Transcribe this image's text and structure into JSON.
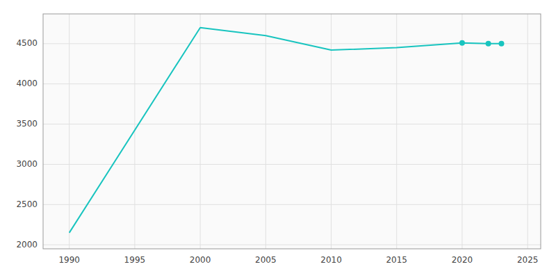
{
  "chart_data": {
    "type": "line",
    "x": [
      1990,
      2000,
      2005,
      2010,
      2015,
      2020,
      2022,
      2023
    ],
    "series": [
      {
        "values": [
          2150,
          4700,
          4600,
          4420,
          4450,
          4510,
          4500,
          4500
        ],
        "color": "#18C4BF"
      },
      {
        "type": "scatter",
        "marker": "circle",
        "color": "#18C4BF",
        "values": [
          null,
          null,
          null,
          null,
          null,
          4510,
          4500,
          4500
        ]
      }
    ],
    "xlim": [
      1988,
      2026
    ],
    "ylim": [
      1950,
      4870
    ],
    "xticks": [
      1990,
      1995,
      2000,
      2005,
      2010,
      2015,
      2020,
      2025
    ],
    "yticks": [
      2000,
      2500,
      3000,
      3500,
      4000,
      4500
    ],
    "grid": true
  }
}
